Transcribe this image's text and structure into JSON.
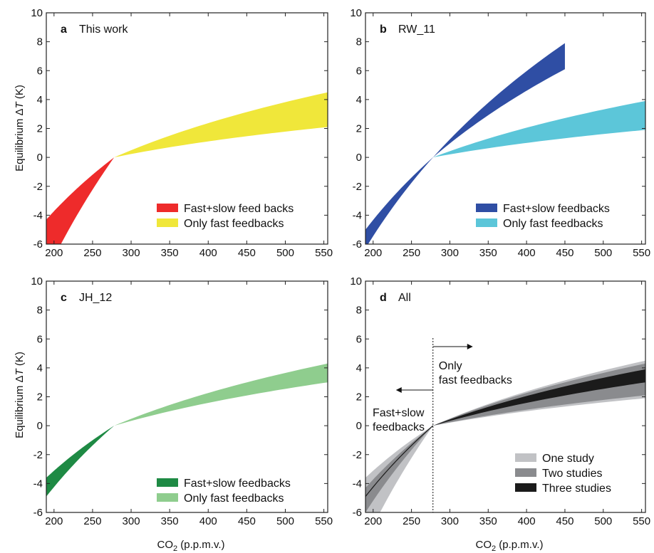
{
  "figure": {
    "ylabel_prefix": "Equilibrium Δ",
    "ylabel_var": "T",
    "ylabel_unit": " (K)",
    "xlabel_prefix": "CO",
    "xlabel_sub": "2",
    "xlabel_suffix": " (p.p.m.v.)"
  },
  "colors": {
    "a_slow": "#ee2b2b",
    "a_fast": "#f0e73a",
    "b_slow": "#2f4ea4",
    "b_fast": "#5cc6d9",
    "c_slow": "#1e8a44",
    "c_fast": "#8fcd8e",
    "d_one": "#c1c2c5",
    "d_two": "#8a8b8e",
    "d_three": "#1b1b1b"
  },
  "chart_data": [
    {
      "type": "area",
      "panel": "a",
      "title": "This work",
      "xlim": [
        190,
        555
      ],
      "ylim": [
        -6,
        10
      ],
      "xticks": [
        200,
        250,
        300,
        350,
        400,
        450,
        500,
        550
      ],
      "yticks": [
        -6,
        -4,
        -2,
        0,
        2,
        4,
        6,
        8,
        10
      ],
      "series": [
        {
          "name": "Fast+slow feed backs",
          "color": "#ee2b2b",
          "style": "band",
          "x": [
            190,
            278
          ],
          "upper_at_x0": -4.3,
          "lower_at_x0": -8.0
        },
        {
          "name": "Only fast feedbacks",
          "color": "#f0e73a",
          "style": "band",
          "x": [
            278,
            555
          ],
          "upper_at_x1": 4.5,
          "lower_at_x1": 2.1
        }
      ]
    },
    {
      "type": "area",
      "panel": "b",
      "title": "RW_11",
      "xlim": [
        190,
        555
      ],
      "ylim": [
        -6,
        10
      ],
      "xticks": [
        200,
        250,
        300,
        350,
        400,
        450,
        500,
        550
      ],
      "yticks": [
        -6,
        -4,
        -2,
        0,
        2,
        4,
        6,
        8,
        10
      ],
      "series": [
        {
          "name": "Fast+slow feedbacks",
          "color": "#2f4ea4",
          "style": "band",
          "x": [
            190,
            450
          ],
          "upper_at_x0": -5.0,
          "lower_at_x0": -6.3,
          "upper_at_x1": 7.9,
          "lower_at_x1": 6.1
        },
        {
          "name": "Only fast feedbacks",
          "color": "#5cc6d9",
          "style": "band",
          "x": [
            278,
            555
          ],
          "upper_at_x1": 3.9,
          "lower_at_x1": 1.9
        }
      ]
    },
    {
      "type": "area",
      "panel": "c",
      "title": "JH_12",
      "xlim": [
        190,
        555
      ],
      "ylim": [
        -6,
        10
      ],
      "xticks": [
        200,
        250,
        300,
        350,
        400,
        450,
        500,
        550
      ],
      "yticks": [
        -6,
        -4,
        -2,
        0,
        2,
        4,
        6,
        8,
        10
      ],
      "series": [
        {
          "name": "Fast+slow feedbacks",
          "color": "#1e8a44",
          "style": "band",
          "x": [
            190,
            278
          ],
          "upper_at_x0": -3.6,
          "lower_at_x0": -4.9
        },
        {
          "name": "Only fast feedbacks",
          "color": "#8fcd8e",
          "style": "band",
          "x": [
            278,
            555
          ],
          "upper_at_x1": 4.3,
          "lower_at_x1": 3.0
        }
      ]
    },
    {
      "type": "area",
      "panel": "d",
      "title": "All",
      "xlim": [
        190,
        555
      ],
      "ylim": [
        -6,
        10
      ],
      "xticks": [
        200,
        250,
        300,
        350,
        400,
        450,
        500,
        550
      ],
      "yticks": [
        -6,
        -4,
        -2,
        0,
        2,
        4,
        6,
        8,
        10
      ],
      "vline_x": 278,
      "annotations": {
        "right_line1": "Only",
        "right_line2": "fast feedbacks",
        "left_line1": "Fast+slow",
        "left_line2": "feedbacks"
      },
      "series": [
        {
          "name": "One study",
          "color": "#c1c2c5",
          "style": "band",
          "left_upper_at_x0": -3.6,
          "left_lower_at_x0": -8.0,
          "right_upper_at_x1": 4.5,
          "right_lower_at_x1": 1.9
        },
        {
          "name": "Two studies",
          "color": "#8a8b8e",
          "style": "band",
          "left_upper_at_x0": -4.3,
          "left_lower_at_x0": -6.0,
          "right_upper_at_x1": 4.3,
          "right_lower_at_x1": 2.1
        },
        {
          "name": "Three studies",
          "color": "#1b1b1b",
          "style": "band",
          "left_line_at_x0": -4.9,
          "right_upper_at_x1": 3.9,
          "right_lower_at_x1": 3.0
        }
      ]
    }
  ]
}
